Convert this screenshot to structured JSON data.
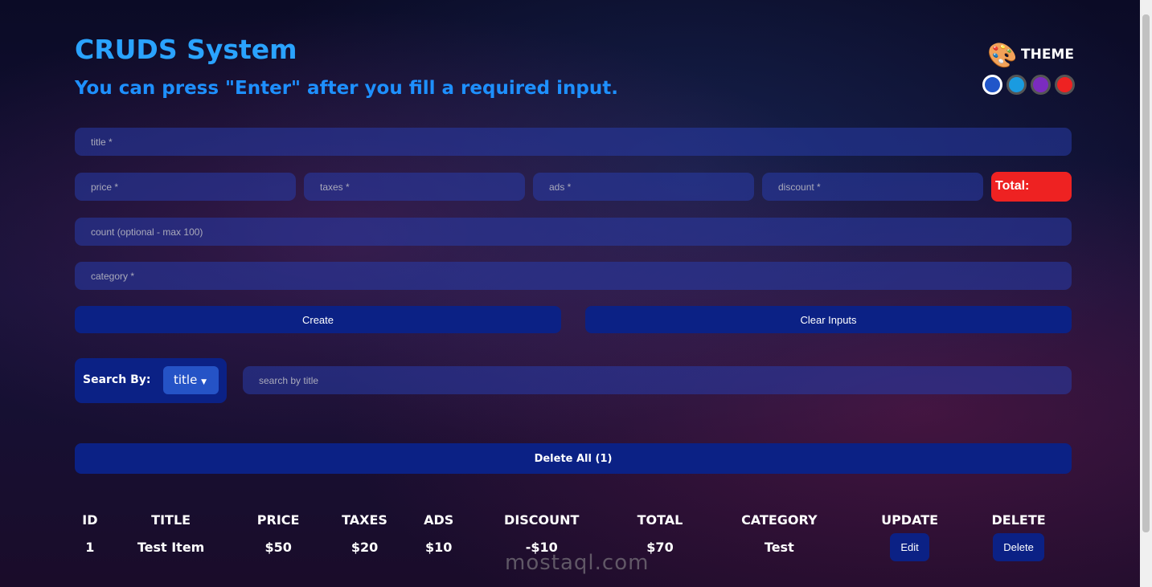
{
  "header": {
    "title": "CRUDS System",
    "hint": "You can press \"Enter\" after you fill a required input."
  },
  "theme": {
    "label": "THEME",
    "icon": "palette-icon",
    "colors": [
      "#2156c9",
      "#1a9be0",
      "#7b2bbf",
      "#ee2222"
    ],
    "selected": 0
  },
  "form": {
    "title_ph": "title *",
    "price_ph": "price *",
    "taxes_ph": "taxes *",
    "ads_ph": "ads *",
    "discount_ph": "discount *",
    "total_label": "Total:",
    "count_ph": "count (optional - max 100)",
    "category_ph": "category *",
    "create": "Create",
    "clear": "Clear Inputs"
  },
  "search": {
    "label": "Search By:",
    "mode": "title",
    "placeholder": "search by title"
  },
  "delete_all": "Delete All (1)",
  "table": {
    "headers": [
      "ID",
      "TITLE",
      "PRICE",
      "TAXES",
      "ADS",
      "DISCOUNT",
      "TOTAL",
      "CATEGORY",
      "UPDATE",
      "DELETE"
    ],
    "rows": [
      {
        "id": "1",
        "title": "Test Item",
        "price": "$50",
        "taxes": "$20",
        "ads": "$10",
        "discount": "-$10",
        "total": "$70",
        "category": "Test",
        "edit": "Edit",
        "delete": "Delete"
      }
    ]
  },
  "watermark": "mostaql.com"
}
